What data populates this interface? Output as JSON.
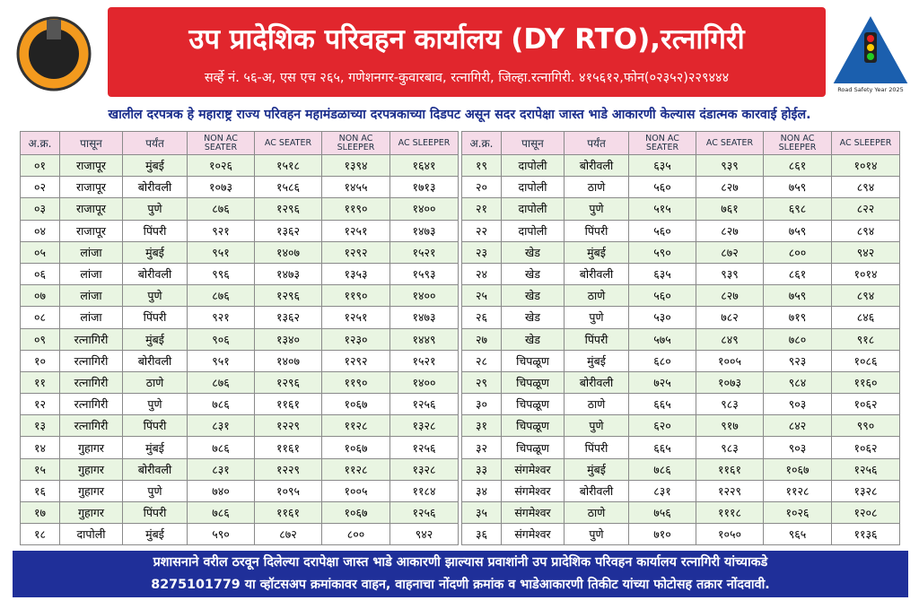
{
  "header": {
    "title": "उप प्रादेशिक परिवहन कार्यालय (DY RTO),रत्नागिरी",
    "address": "सर्व्हे नं. ५६-अ, एस एच २६५, गणेशनगर-कुवारबाव, रत्नागिरी, जिल्हा.रत्नागिरी. ४१५६१२,फोन(०२३५२)२२९४४४",
    "logo_right": "Road Safety Year 2025"
  },
  "notice": "खालील दरपत्रक हे महाराष्ट्र राज्य परिवहन महामंडळाच्या दरपत्रकाच्या दिडपट असून सदर दरापेक्षा जास्त भाडे आकारणी केल्यास दंडात्मक कारवाई होईल.",
  "tables": [
    {
      "header": [
        "अ.क्र.",
        "पासून",
        "पर्यंत",
        "NON AC SEATER",
        "AC SEATER",
        "NON AC SLEEPER",
        "AC SLEEPER"
      ],
      "rows": [
        [
          "०१",
          "राजापूर",
          "मुंबई",
          "१०२६",
          "१५१८",
          "१३९४",
          "१६४१"
        ],
        [
          "०२",
          "राजापूर",
          "बोरीवली",
          "१०७३",
          "१५८६",
          "१४५५",
          "१७१३"
        ],
        [
          "०३",
          "राजापूर",
          "पुणे",
          "८७६",
          "१२९६",
          "११९०",
          "१४००"
        ],
        [
          "०४",
          "राजापूर",
          "पिंपरी",
          "९२१",
          "१३६२",
          "१२५१",
          "१४७३"
        ],
        [
          "०५",
          "लांजा",
          "मुंबई",
          "९५१",
          "१४०७",
          "१२९२",
          "१५२१"
        ],
        [
          "०६",
          "लांजा",
          "बोरीवली",
          "९९६",
          "१४७३",
          "१३५३",
          "१५९३"
        ],
        [
          "०७",
          "लांजा",
          "पुणे",
          "८७६",
          "१२९६",
          "११९०",
          "१४००"
        ],
        [
          "०८",
          "लांजा",
          "पिंपरी",
          "९२१",
          "१३६२",
          "१२५१",
          "१४७३"
        ],
        [
          "०९",
          "रत्नागिरी",
          "मुंबई",
          "९०६",
          "१३४०",
          "१२३०",
          "१४४९"
        ],
        [
          "१०",
          "रत्नागिरी",
          "बोरीवली",
          "९५१",
          "१४०७",
          "१२९२",
          "१५२१"
        ],
        [
          "११",
          "रत्नागिरी",
          "ठाणे",
          "८७६",
          "१२९६",
          "११९०",
          "१४००"
        ],
        [
          "१२",
          "रत्नागिरी",
          "पुणे",
          "७८६",
          "११६१",
          "१०६७",
          "१२५६"
        ],
        [
          "१३",
          "रत्नागिरी",
          "पिंपरी",
          "८३१",
          "१२२९",
          "११२८",
          "१३२८"
        ],
        [
          "१४",
          "गुहागर",
          "मुंबई",
          "७८६",
          "११६१",
          "१०६७",
          "१२५६"
        ],
        [
          "१५",
          "गुहागर",
          "बोरीवली",
          "८३१",
          "१२२९",
          "११२८",
          "१३२८"
        ],
        [
          "१६",
          "गुहागर",
          "पुणे",
          "७४०",
          "१०९५",
          "१००५",
          "११८४"
        ],
        [
          "१७",
          "गुहागर",
          "पिंपरी",
          "७८६",
          "११६१",
          "१०६७",
          "१२५६"
        ],
        [
          "१८",
          "दापोली",
          "मुंबई",
          "५९०",
          "८७२",
          "८००",
          "९४२"
        ]
      ]
    },
    {
      "header": [
        "अ.क्र.",
        "पासून",
        "पर्यंत",
        "NON AC SEATER",
        "AC SEATER",
        "NON AC SLEEPER",
        "AC SLEEPER"
      ],
      "rows": [
        [
          "१९",
          "दापोली",
          "बोरीवली",
          "६३५",
          "९३९",
          "८६१",
          "१०१४"
        ],
        [
          "२०",
          "दापोली",
          "ठाणे",
          "५६०",
          "८२७",
          "७५९",
          "८९४"
        ],
        [
          "२१",
          "दापोली",
          "पुणे",
          "५१५",
          "७६१",
          "६९८",
          "८२२"
        ],
        [
          "२२",
          "दापोली",
          "पिंपरी",
          "५६०",
          "८२७",
          "७५९",
          "८९४"
        ],
        [
          "२३",
          "खेड",
          "मुंबई",
          "५९०",
          "८७२",
          "८००",
          "९४२"
        ],
        [
          "२४",
          "खेड",
          "बोरीवली",
          "६३५",
          "९३९",
          "८६१",
          "१०१४"
        ],
        [
          "२५",
          "खेड",
          "ठाणे",
          "५६०",
          "८२७",
          "७५९",
          "८९४"
        ],
        [
          "२६",
          "खेड",
          "पुणे",
          "५३०",
          "७८२",
          "७१९",
          "८४६"
        ],
        [
          "२७",
          "खेड",
          "पिंपरी",
          "५७५",
          "८४९",
          "७८०",
          "९१८"
        ],
        [
          "२८",
          "चिपळूण",
          "मुंबई",
          "६८०",
          "१००५",
          "९२३",
          "१०८६"
        ],
        [
          "२९",
          "चिपळूण",
          "बोरीवली",
          "७२५",
          "१०७३",
          "९८४",
          "११६०"
        ],
        [
          "३०",
          "चिपळूण",
          "ठाणे",
          "६६५",
          "९८३",
          "९०३",
          "१०६२"
        ],
        [
          "३१",
          "चिपळूण",
          "पुणे",
          "६२०",
          "९१७",
          "८४२",
          "९९०"
        ],
        [
          "३२",
          "चिपळूण",
          "पिंपरी",
          "६६५",
          "९८३",
          "९०३",
          "१०६२"
        ],
        [
          "३३",
          "संगमेश्वर",
          "मुंबई",
          "७८६",
          "११६१",
          "१०६७",
          "१२५६"
        ],
        [
          "३४",
          "संगमेश्वर",
          "बोरीवली",
          "८३१",
          "१२२९",
          "११२८",
          "१३२८"
        ],
        [
          "३५",
          "संगमेश्वर",
          "ठाणे",
          "७५६",
          "१११८",
          "१०२६",
          "१२०८"
        ],
        [
          "३६",
          "संगमेश्वर",
          "पुणे",
          "७१०",
          "१०५०",
          "९६५",
          "११३६"
        ]
      ]
    }
  ],
  "footer": {
    "line1": "प्रशासनाने वरील ठरवून दिलेल्या दरापेक्षा जास्त भाडे आकारणी झाल्यास प्रवाशांनी उप प्रादेशिक परिवहन कार्यालय रत्नागिरी यांच्याकडे",
    "line2": "8275101779 या व्हॉटसअप क्रमांकावर वाहन, वाहनाचा नोंदणी क्रमांक व भाडेआकारणी तिकीट यांच्या फोटोसह तक्रार नोंदवावी."
  }
}
